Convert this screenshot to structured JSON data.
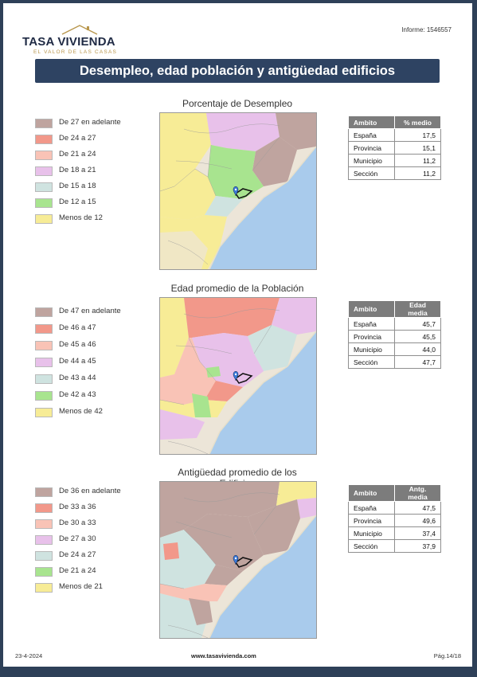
{
  "header": {
    "brand": "TASA VIVIENDA",
    "tagline": "EL VALOR DE LAS CASAS",
    "report_id": "Informe: 1546557"
  },
  "banner": {
    "title": "Desempleo, edad población y antigüedad edificios"
  },
  "sections": [
    {
      "title": "Porcentaje de Desempleo",
      "legend": [
        {
          "label": "De 27 en adelante",
          "color": "#bfa49f"
        },
        {
          "label": "De 24 a 27",
          "color": "#f2988a"
        },
        {
          "label": "De 21 a 24",
          "color": "#f9c3b6"
        },
        {
          "label": "De 18 a 21",
          "color": "#e8c1ea"
        },
        {
          "label": "De 15 a 18",
          "color": "#cfe3e0"
        },
        {
          "label": "De 12 a 15",
          "color": "#a8e48f"
        },
        {
          "label": "Menos de 12",
          "color": "#f7ec96"
        }
      ],
      "table": {
        "headers": [
          "Ambito",
          "% medio"
        ],
        "rows": [
          [
            "España",
            "17,5"
          ],
          [
            "Provincia",
            "15,1"
          ],
          [
            "Municipio",
            "11,2"
          ],
          [
            "Sección",
            "11,2"
          ]
        ]
      }
    },
    {
      "title": "Edad promedio de la Población",
      "legend": [
        {
          "label": "De 47 en adelante",
          "color": "#bfa49f"
        },
        {
          "label": "De 46 a 47",
          "color": "#f2988a"
        },
        {
          "label": "De 45 a 46",
          "color": "#f9c3b6"
        },
        {
          "label": "De 44 a 45",
          "color": "#e8c1ea"
        },
        {
          "label": "De 43 a 44",
          "color": "#cfe3e0"
        },
        {
          "label": "De 42 a 43",
          "color": "#a8e48f"
        },
        {
          "label": "Menos de 42",
          "color": "#f7ec96"
        }
      ],
      "table": {
        "headers": [
          "Ambito",
          "Edad media"
        ],
        "rows": [
          [
            "España",
            "45,7"
          ],
          [
            "Provincia",
            "45,5"
          ],
          [
            "Municipio",
            "44,0"
          ],
          [
            "Sección",
            "47,7"
          ]
        ]
      }
    },
    {
      "title": "Antigüedad promedio de los Edificios",
      "legend": [
        {
          "label": "De 36 en adelante",
          "color": "#bfa49f"
        },
        {
          "label": "De 33 a 36",
          "color": "#f2988a"
        },
        {
          "label": "De 30 a 33",
          "color": "#f9c3b6"
        },
        {
          "label": "De 27 a 30",
          "color": "#e8c1ea"
        },
        {
          "label": "De 24 a 27",
          "color": "#cfe3e0"
        },
        {
          "label": "De 21 a 24",
          "color": "#a8e48f"
        },
        {
          "label": "Menos de 21",
          "color": "#f7ec96"
        }
      ],
      "table": {
        "headers": [
          "Ambito",
          "Antg. media"
        ],
        "rows": [
          [
            "España",
            "47,5"
          ],
          [
            "Provincia",
            "49,6"
          ],
          [
            "Municipio",
            "37,4"
          ],
          [
            "Sección",
            "37,9"
          ]
        ]
      }
    }
  ],
  "footer": {
    "date": "23-4-2024",
    "url": "www.tasavivienda.com",
    "page": "Pág.14/18"
  }
}
